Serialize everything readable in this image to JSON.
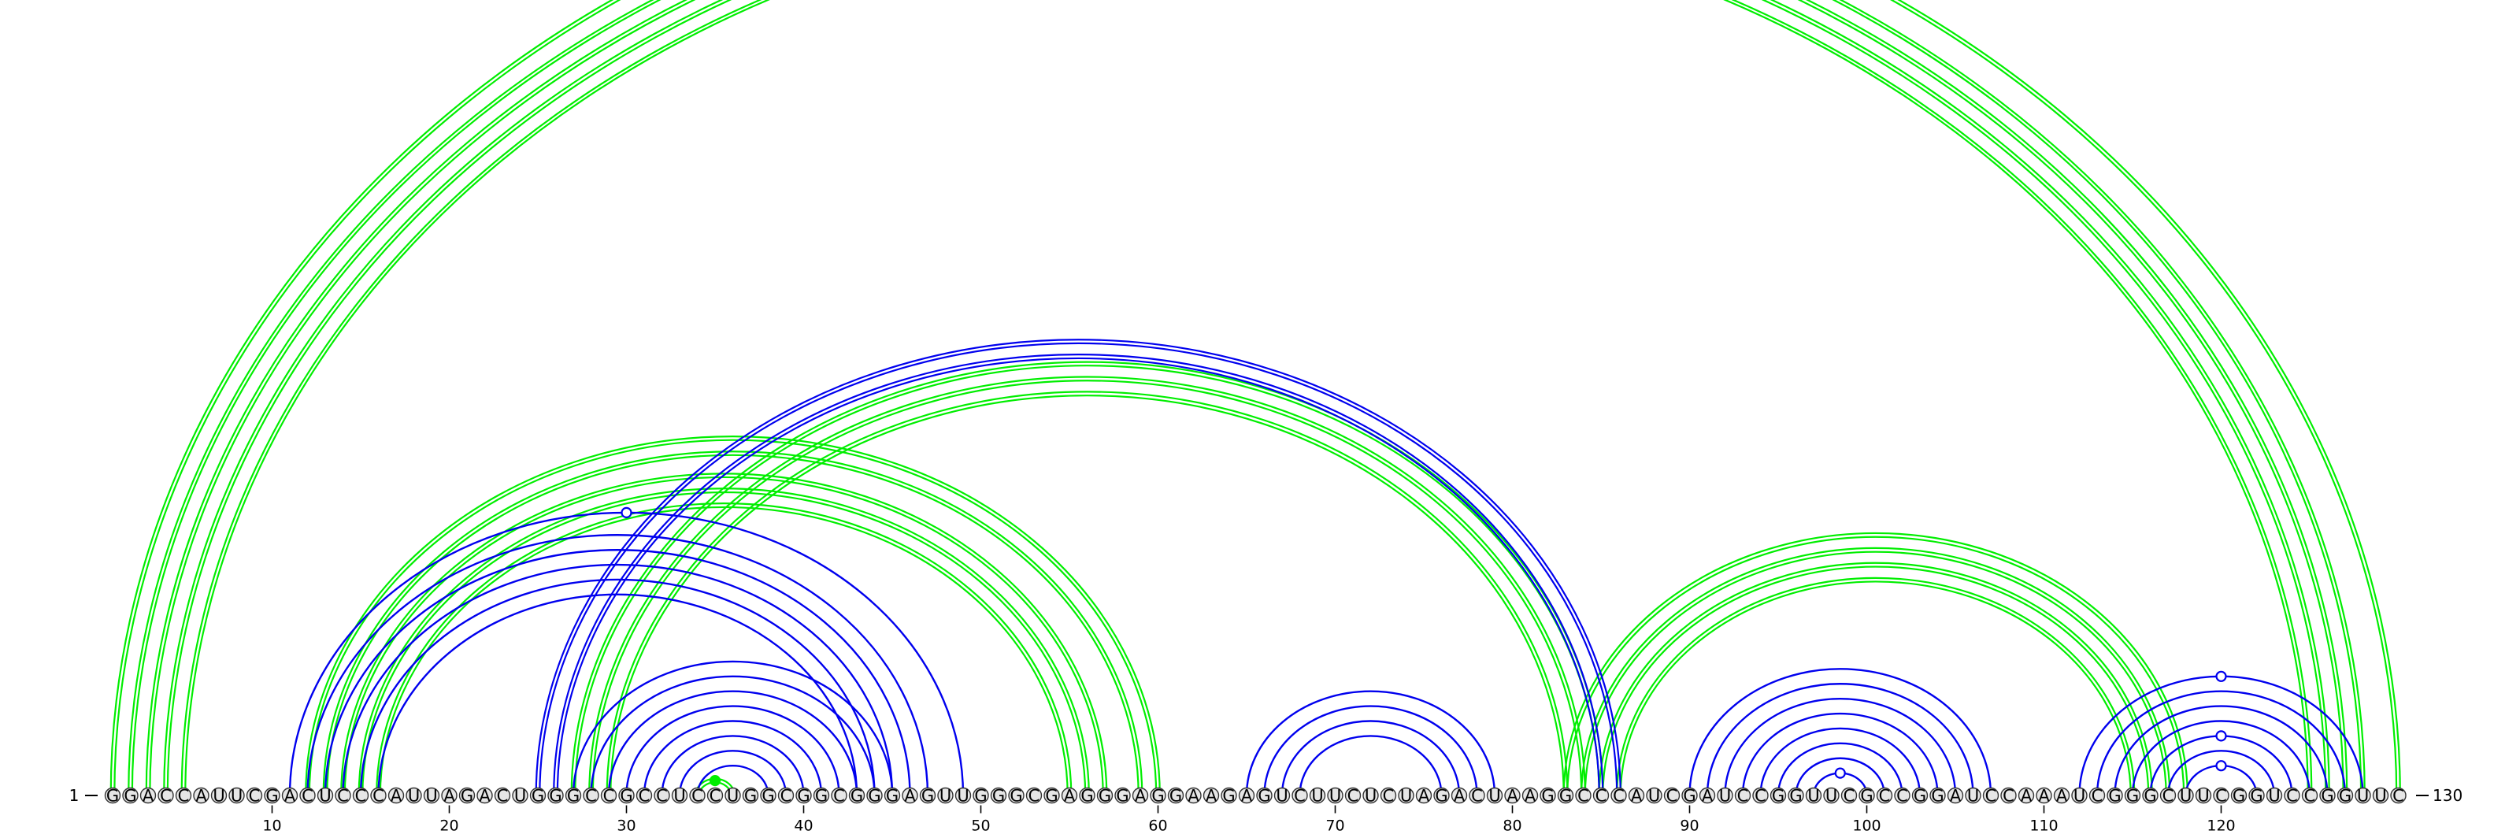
{
  "diagram": {
    "title": "",
    "sequence": "GGACCAUUCGACUCCCAUUAGACUGGGCCGCCUCCUGGCGGCGGGAGUUGGGCGAGGGAGGAAGAGUCUUCUCUAGACUAAGGCCCAUCGAUCCGGUUCGCCGGAUCCAAAUCGGGCUUCGGUCCGGUUC",
    "length": 130,
    "start_label": "1",
    "end_label": "130",
    "ticks": [
      10,
      20,
      30,
      40,
      50,
      60,
      70,
      80,
      90,
      100,
      110,
      120
    ],
    "colors": {
      "structure_a": "#00ee00",
      "structure_b": "#0000ee",
      "nucleotide_fill": "#e6e6e6"
    },
    "arc_groups": [
      {
        "structure": "a",
        "style": "double",
        "pairs": [
          [
            1,
            130
          ],
          [
            2,
            128
          ],
          [
            3,
            127
          ],
          [
            4,
            126
          ],
          [
            5,
            125
          ]
        ]
      },
      {
        "structure": "a",
        "style": "double",
        "pairs": [
          [
            12,
            60
          ],
          [
            13,
            59
          ],
          [
            14,
            57
          ],
          [
            15,
            56
          ],
          [
            16,
            55
          ]
        ]
      },
      {
        "structure": "a",
        "style": "double",
        "pairs": [
          [
            27,
            85
          ],
          [
            28,
            84
          ],
          [
            29,
            83
          ]
        ]
      },
      {
        "structure": "a",
        "style": "double",
        "pairs": [
          [
            83,
            118
          ],
          [
            84,
            117
          ],
          [
            85,
            116
          ],
          [
            86,
            115
          ]
        ]
      },
      {
        "structure": "a",
        "style": "double",
        "pairs": [
          [
            34,
            36
          ]
        ]
      },
      {
        "structure": "b",
        "style": "double",
        "pairs": [
          [
            25,
            86
          ],
          [
            26,
            85
          ]
        ]
      },
      {
        "structure": "b",
        "style": "single",
        "pairs": [
          [
            11,
            49
          ],
          [
            12,
            47
          ],
          [
            13,
            46
          ],
          [
            14,
            45
          ],
          [
            15,
            44
          ],
          [
            16,
            43
          ]
        ]
      },
      {
        "structure": "b",
        "style": "single",
        "pairs": [
          [
            27,
            45
          ],
          [
            28,
            44
          ],
          [
            29,
            43
          ],
          [
            30,
            42
          ],
          [
            31,
            41
          ],
          [
            32,
            40
          ],
          [
            33,
            39
          ],
          [
            34,
            38
          ]
        ]
      },
      {
        "structure": "b",
        "style": "single",
        "pairs": [
          [
            65,
            79
          ],
          [
            66,
            78
          ],
          [
            67,
            77
          ],
          [
            68,
            76
          ]
        ]
      },
      {
        "structure": "b",
        "style": "single",
        "pairs": [
          [
            90,
            107
          ],
          [
            91,
            106
          ],
          [
            92,
            105
          ],
          [
            93,
            104
          ],
          [
            94,
            103
          ],
          [
            95,
            102
          ],
          [
            96,
            101
          ],
          [
            97,
            100
          ]
        ]
      },
      {
        "structure": "b",
        "style": "single",
        "pairs": [
          [
            112,
            128
          ],
          [
            113,
            127
          ],
          [
            114,
            126
          ],
          [
            115,
            125
          ],
          [
            116,
            124
          ],
          [
            117,
            123
          ],
          [
            118,
            122
          ]
        ]
      }
    ],
    "markers": [
      {
        "structure": "b",
        "pair": [
          11,
          49
        ],
        "filled": false
      },
      {
        "structure": "a",
        "pair": [
          34,
          36
        ],
        "filled": true
      },
      {
        "structure": "b",
        "pair": [
          97,
          100
        ],
        "filled": false
      },
      {
        "structure": "b",
        "pair": [
          112,
          128
        ],
        "filled": false
      },
      {
        "structure": "b",
        "pair": [
          116,
          124
        ],
        "filled": false
      },
      {
        "structure": "b",
        "pair": [
          118,
          122
        ],
        "filled": false
      }
    ]
  }
}
